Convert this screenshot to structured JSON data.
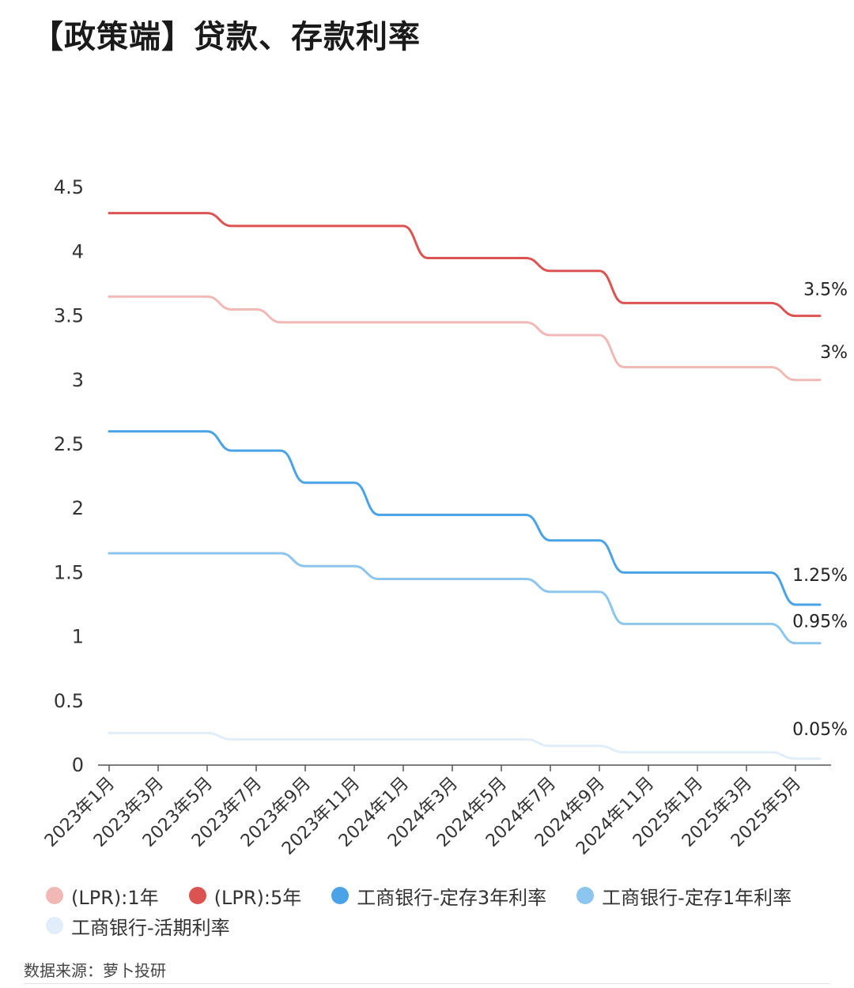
{
  "title": "【政策端】贷款、存款利率",
  "source": "数据来源：萝卜投研",
  "chart_data": {
    "type": "line",
    "x": [
      "2023年1月",
      "2023年2月",
      "2023年3月",
      "2023年4月",
      "2023年5月",
      "2023年6月",
      "2023年7月",
      "2023年8月",
      "2023年9月",
      "2023年10月",
      "2023年11月",
      "2023年12月",
      "2024年1月",
      "2024年2月",
      "2024年3月",
      "2024年4月",
      "2024年5月",
      "2024年6月",
      "2024年7月",
      "2024年8月",
      "2024年9月",
      "2024年10月",
      "2024年11月",
      "2024年12月",
      "2025年1月",
      "2025年2月",
      "2025年3月",
      "2025年4月",
      "2025年5月",
      "2025年6月"
    ],
    "x_tick_labels": [
      "2023年1月",
      "2023年3月",
      "2023年5月",
      "2023年7月",
      "2023年9月",
      "2023年11月",
      "2024年1月",
      "2024年3月",
      "2024年5月",
      "2024年7月",
      "2024年9月",
      "2024年11月",
      "2025年1月",
      "2025年3月",
      "2025年5月"
    ],
    "y_ticks": [
      "0",
      "0.5",
      "1",
      "1.5",
      "2",
      "2.5",
      "3",
      "3.5",
      "4",
      "4.5"
    ],
    "ylim": [
      0,
      4.5
    ],
    "grid": false,
    "legend_position": "bottom",
    "series": [
      {
        "name": "(LPR):1年",
        "color": "#f2b8b5",
        "end_label": "3%",
        "values": [
          3.65,
          3.65,
          3.65,
          3.65,
          3.65,
          3.55,
          3.55,
          3.45,
          3.45,
          3.45,
          3.45,
          3.45,
          3.45,
          3.45,
          3.45,
          3.45,
          3.45,
          3.45,
          3.35,
          3.35,
          3.35,
          3.1,
          3.1,
          3.1,
          3.1,
          3.1,
          3.1,
          3.1,
          3.0,
          3.0
        ]
      },
      {
        "name": "(LPR):5年",
        "color": "#db5451",
        "end_label": "3.5%",
        "values": [
          4.3,
          4.3,
          4.3,
          4.3,
          4.3,
          4.2,
          4.2,
          4.2,
          4.2,
          4.2,
          4.2,
          4.2,
          4.2,
          3.95,
          3.95,
          3.95,
          3.95,
          3.95,
          3.85,
          3.85,
          3.85,
          3.6,
          3.6,
          3.6,
          3.6,
          3.6,
          3.6,
          3.6,
          3.5,
          3.5
        ]
      },
      {
        "name": "工商银行-定存3年利率",
        "color": "#4aa3e6",
        "end_label": "1.25%",
        "values": [
          2.6,
          2.6,
          2.6,
          2.6,
          2.6,
          2.45,
          2.45,
          2.45,
          2.2,
          2.2,
          2.2,
          1.95,
          1.95,
          1.95,
          1.95,
          1.95,
          1.95,
          1.95,
          1.75,
          1.75,
          1.75,
          1.5,
          1.5,
          1.5,
          1.5,
          1.5,
          1.5,
          1.5,
          1.25,
          1.25
        ]
      },
      {
        "name": "工商银行-定存1年利率",
        "color": "#8cc6ee",
        "end_label": "0.95%",
        "values": [
          1.65,
          1.65,
          1.65,
          1.65,
          1.65,
          1.65,
          1.65,
          1.65,
          1.55,
          1.55,
          1.55,
          1.45,
          1.45,
          1.45,
          1.45,
          1.45,
          1.45,
          1.45,
          1.35,
          1.35,
          1.35,
          1.1,
          1.1,
          1.1,
          1.1,
          1.1,
          1.1,
          1.1,
          0.95,
          0.95
        ]
      },
      {
        "name": "工商银行-活期利率",
        "color": "#e1eef9",
        "end_label": "0.05%",
        "values": [
          0.25,
          0.25,
          0.25,
          0.25,
          0.25,
          0.2,
          0.2,
          0.2,
          0.2,
          0.2,
          0.2,
          0.2,
          0.2,
          0.2,
          0.2,
          0.2,
          0.2,
          0.2,
          0.15,
          0.15,
          0.15,
          0.1,
          0.1,
          0.1,
          0.1,
          0.1,
          0.1,
          0.1,
          0.05,
          0.05
        ]
      }
    ]
  }
}
